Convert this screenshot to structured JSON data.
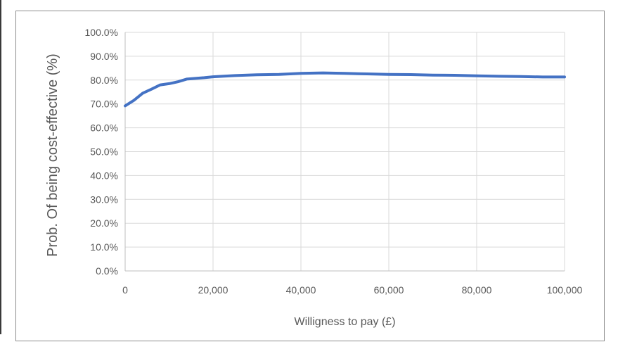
{
  "chart_data": {
    "type": "line",
    "title": "",
    "xlabel": "Willigness to pay (£)",
    "ylabel": "Prob. Of being cost-effective (%)",
    "x_ticks": [
      "0",
      "20,000",
      "40,000",
      "60,000",
      "80,000",
      "100,000"
    ],
    "y_ticks": [
      "0.0%",
      "10.0%",
      "20.0%",
      "30.0%",
      "40.0%",
      "50.0%",
      "60.0%",
      "70.0%",
      "80.0%",
      "90.0%",
      "100.0%"
    ],
    "xlim": [
      0,
      100000
    ],
    "ylim": [
      0,
      100
    ],
    "grid": "vertical-and-horizontal",
    "legend": "none",
    "series": [
      {
        "color": "#4472C4",
        "x": [
          0,
          2000,
          4000,
          6000,
          8000,
          10000,
          12000,
          14000,
          16000,
          18000,
          20000,
          25000,
          30000,
          35000,
          40000,
          45000,
          50000,
          55000,
          60000,
          65000,
          70000,
          75000,
          80000,
          85000,
          90000,
          95000,
          100000
        ],
        "y": [
          69.2,
          71.5,
          74.5,
          76.2,
          78.0,
          78.5,
          79.3,
          80.4,
          80.7,
          81.0,
          81.4,
          81.9,
          82.2,
          82.4,
          82.8,
          83.0,
          82.8,
          82.6,
          82.4,
          82.3,
          82.1,
          82.0,
          81.8,
          81.6,
          81.5,
          81.3,
          81.3
        ]
      }
    ]
  }
}
